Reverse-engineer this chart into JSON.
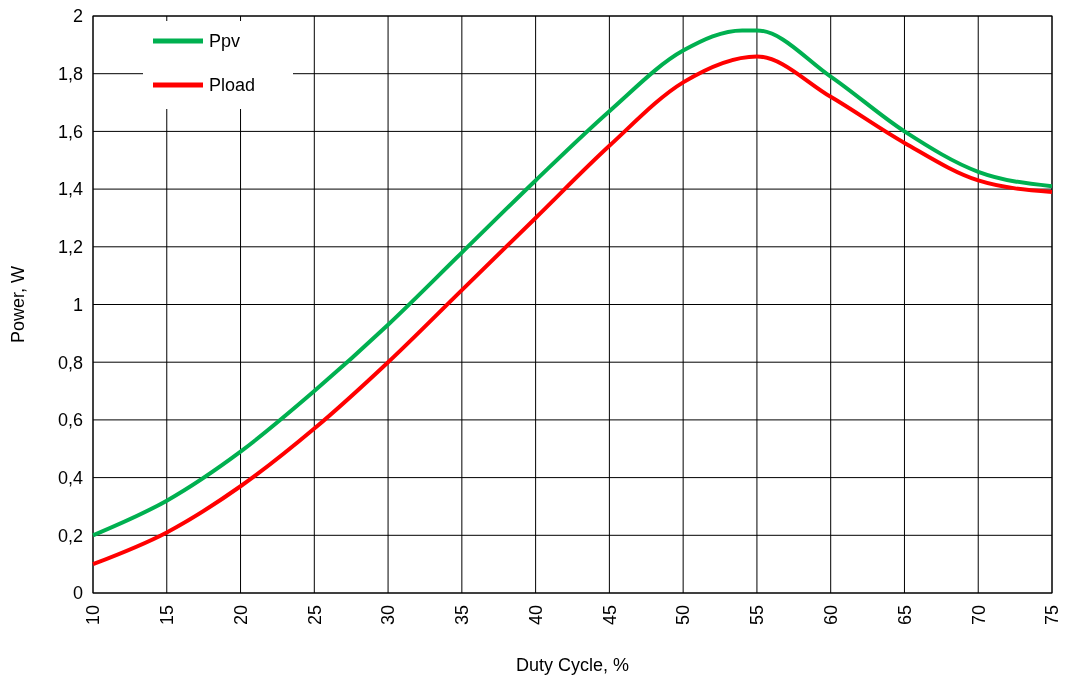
{
  "chart_data": {
    "type": "line",
    "xlabel": "Duty Cycle, %",
    "ylabel": "Power, W",
    "x": [
      10,
      15,
      20,
      25,
      30,
      35,
      40,
      45,
      50,
      54,
      55,
      60,
      65,
      70,
      75
    ],
    "series": [
      {
        "name": "Ppv",
        "color": "#00b050",
        "values": [
          0.2,
          0.32,
          0.49,
          0.7,
          0.93,
          1.18,
          1.43,
          1.67,
          1.88,
          1.95,
          1.95,
          1.79,
          1.6,
          1.46,
          1.41
        ]
      },
      {
        "name": "Pload",
        "color": "#ff0000",
        "x": [
          10,
          15,
          20,
          25,
          30,
          35,
          40,
          45,
          50,
          55,
          60,
          65,
          70,
          75
        ],
        "values": [
          0.1,
          0.21,
          0.37,
          0.57,
          0.8,
          1.05,
          1.3,
          1.55,
          1.77,
          1.86,
          1.72,
          1.56,
          1.43,
          1.39
        ]
      }
    ],
    "xlim": [
      10,
      75
    ],
    "xticks": [
      10,
      15,
      20,
      25,
      30,
      35,
      40,
      45,
      50,
      55,
      60,
      65,
      70,
      75
    ],
    "ylim": [
      0,
      2
    ],
    "yticks": [
      0,
      {
        "value": 0.2,
        "label": "0,2"
      },
      {
        "value": 0.4,
        "label": "0,4"
      },
      {
        "value": 0.6,
        "label": "0,6"
      },
      {
        "value": 0.8,
        "label": "0,8"
      },
      1,
      {
        "value": 1.2,
        "label": "1,2"
      },
      {
        "value": 1.4,
        "label": "1,4"
      },
      {
        "value": 1.6,
        "label": "1,6"
      },
      {
        "value": 1.8,
        "label": "1,8"
      },
      2
    ],
    "grid": true,
    "legend": "top left",
    "line_style": "solid"
  }
}
